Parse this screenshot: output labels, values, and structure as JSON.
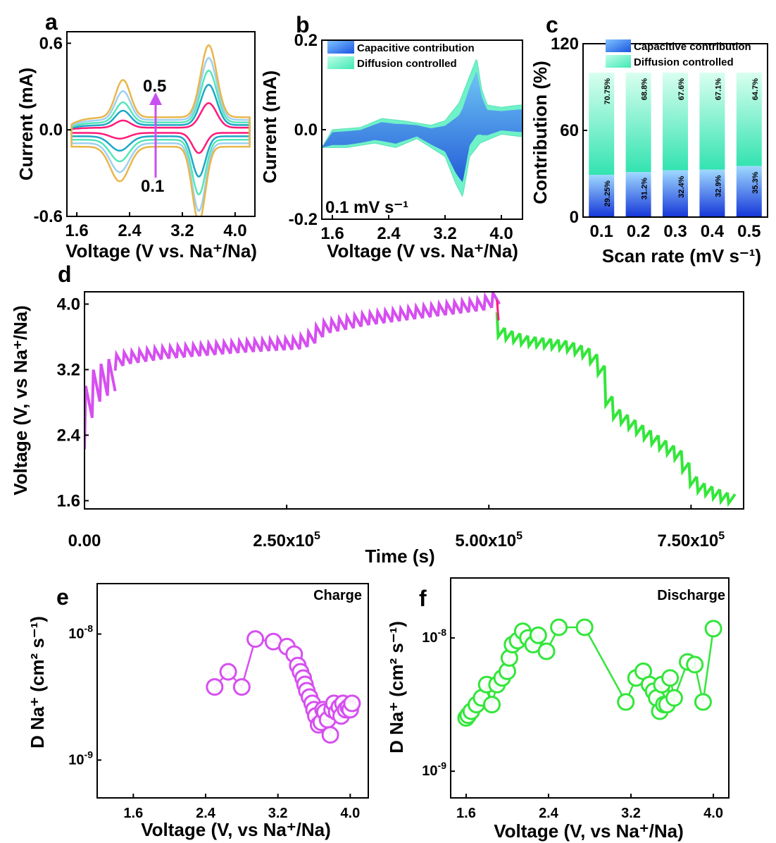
{
  "colors": {
    "cv_scan_colors": [
      "#ff1a7a",
      "#1ea7c7",
      "#55e6b8",
      "#9ed0f2",
      "#e8b64a"
    ],
    "capacitive": "#1e74e0",
    "diffusion": "#6ff2c8",
    "gitt_charge": "#d64ff0",
    "gitt_discharge": "#33e63a",
    "gitt_drop": "#ff1a7a",
    "arrow": "#c94ff2"
  },
  "panels": [
    {
      "letter": "a",
      "chart_data": {
        "type": "line",
        "xlabel": "Voltage (V vs. Na⁺/Na)",
        "ylabel": "Current (mA)",
        "xlim": [
          1.45,
          4.3
        ],
        "ylim": [
          -0.6,
          0.68
        ],
        "xticks": [
          1.6,
          2.4,
          3.2,
          4.0
        ],
        "yticks": [
          -0.6,
          0.0,
          0.6
        ],
        "annotations": [
          "0.5",
          "0.1"
        ],
        "scan_rates": [
          0.1,
          0.2,
          0.3,
          0.4,
          0.5
        ],
        "anodic_peaks": [
          {
            "v": 2.3,
            "i": [
              0.05,
              0.1,
              0.14,
              0.2,
              0.26
            ]
          },
          {
            "v": 3.6,
            "i": [
              0.17,
              0.28,
              0.36,
              0.43,
              0.5
            ]
          }
        ],
        "cathodic_peaks": [
          {
            "v": 2.25,
            "i": [
              -0.04,
              -0.1,
              -0.15,
              -0.2,
              -0.24
            ]
          },
          {
            "v": 3.45,
            "i": [
              -0.14,
              -0.28,
              -0.38,
              -0.47,
              -0.52
            ]
          }
        ]
      }
    },
    {
      "letter": "b",
      "chart_data": {
        "type": "area",
        "xlabel": "Voltage (V vs. Na⁺/Na)",
        "ylabel": "Current (mA)",
        "xlim": [
          1.45,
          4.3
        ],
        "ylim": [
          -0.2,
          0.2
        ],
        "xticks": [
          1.6,
          2.4,
          3.2,
          4.0
        ],
        "yticks": [
          -0.2,
          0.0,
          0.2
        ],
        "series": [
          {
            "name": "Capacitive contribution"
          },
          {
            "name": "Diffusion controlled"
          }
        ],
        "annotation": "0.1 mV s⁻¹",
        "upper_curve": {
          "x": [
            1.45,
            1.6,
            2.0,
            2.3,
            2.6,
            3.0,
            3.2,
            3.4,
            3.55,
            3.65,
            3.72,
            3.8,
            4.0,
            4.25
          ],
          "y": [
            -0.04,
            0.0,
            0.005,
            0.025,
            0.02,
            0.01,
            0.02,
            0.06,
            0.12,
            0.16,
            0.09,
            0.055,
            0.05,
            0.055
          ]
        },
        "lower_curve": {
          "x": [
            1.45,
            1.8,
            2.2,
            2.5,
            2.8,
            3.0,
            3.2,
            3.35,
            3.45,
            3.55,
            3.7,
            4.0,
            4.25
          ],
          "y": [
            -0.04,
            -0.04,
            -0.03,
            -0.04,
            -0.02,
            -0.04,
            -0.06,
            -0.12,
            -0.15,
            -0.06,
            -0.03,
            -0.01,
            -0.015
          ]
        }
      }
    },
    {
      "letter": "c",
      "chart_data": {
        "type": "bar",
        "xlabel": "Scan rate (mV s⁻¹)",
        "ylabel": "Contribution (%)",
        "ylim": [
          0,
          120
        ],
        "yticks": [
          0,
          60,
          120
        ],
        "categories": [
          "0.1",
          "0.2",
          "0.3",
          "0.4",
          "0.5"
        ],
        "series": [
          {
            "name": "Capacitive contribution",
            "values": [
              29.25,
              31.2,
              32.4,
              32.9,
              35.3
            ],
            "labels": [
              "29.25%",
              "31.2%",
              "32.4%",
              "32.9%",
              "35.3%"
            ]
          },
          {
            "name": "Diffusion controlled",
            "values": [
              70.75,
              68.8,
              67.6,
              67.1,
              64.7
            ],
            "labels": [
              "70.75%",
              "68.8%",
              "67.6%",
              "67.1%",
              "64.7%"
            ]
          }
        ]
      }
    },
    {
      "letter": "d",
      "chart_data": {
        "type": "line",
        "xlabel": "Time (s)",
        "ylabel": "Voltage (V, vs Na⁺/Na)",
        "xlim": [
          0,
          815000.0
        ],
        "ylim": [
          1.5,
          4.15
        ],
        "xticks": [
          0,
          250000,
          500000,
          750000
        ],
        "xtick_labels": [
          {
            "base": "0.00",
            "exp": ""
          },
          {
            "base": "2.50x10",
            "exp": "5"
          },
          {
            "base": "5.00x10",
            "exp": "5"
          },
          {
            "base": "7.50x10",
            "exp": "5"
          }
        ],
        "yticks": [
          1.6,
          2.4,
          3.2,
          4.0
        ],
        "charge_envelope": {
          "t": [
            0,
            8000,
            20000,
            50000,
            100000,
            200000,
            270000,
            285000,
            300000,
            350000,
            420000,
            500000,
            510000
          ],
          "v": [
            2.6,
            2.95,
            3.2,
            3.38,
            3.45,
            3.53,
            3.57,
            3.64,
            3.76,
            3.86,
            3.95,
            4.05,
            4.12
          ]
        },
        "discharge_envelope": {
          "t": [
            510000,
            520000,
            550000,
            600000,
            630000,
            645000,
            655000,
            700000,
            740000,
            760000,
            800000
          ],
          "v": [
            3.82,
            3.62,
            3.53,
            3.47,
            3.36,
            3.14,
            2.68,
            2.38,
            2.12,
            1.76,
            1.6
          ]
        }
      }
    },
    {
      "letter": "e",
      "chart_data": {
        "type": "scatter",
        "xlabel": "Voltage (V, vs Na⁺/Na)",
        "ylabel": "D Na⁺ (cm² s⁻¹)",
        "annotation": "Charge",
        "xlim": [
          1.2,
          4.2
        ],
        "ylim_log10": [
          -9.3,
          -7.6
        ],
        "xticks": [
          1.6,
          2.4,
          3.2,
          4.0
        ],
        "yticks_log10": [
          -9,
          -8
        ],
        "x": [
          2.5,
          2.65,
          2.8,
          2.95,
          3.15,
          3.3,
          3.38,
          3.42,
          3.45,
          3.48,
          3.5,
          3.52,
          3.55,
          3.58,
          3.6,
          3.62,
          3.65,
          3.68,
          3.7,
          3.72,
          3.75,
          3.78,
          3.8,
          3.82,
          3.85,
          3.88,
          3.9,
          3.92,
          3.95,
          3.98,
          4.0,
          4.02
        ],
        "y_log10": [
          -8.42,
          -8.3,
          -8.42,
          -8.04,
          -8.06,
          -8.1,
          -8.16,
          -8.25,
          -8.3,
          -8.35,
          -8.4,
          -8.45,
          -8.5,
          -8.55,
          -8.6,
          -8.65,
          -8.72,
          -8.7,
          -8.6,
          -8.62,
          -8.68,
          -8.8,
          -8.6,
          -8.55,
          -8.62,
          -8.58,
          -8.65,
          -8.55,
          -8.6,
          -8.58,
          -8.6,
          -8.55
        ]
      }
    },
    {
      "letter": "f",
      "chart_data": {
        "type": "scatter",
        "xlabel": "Voltage (V, vs Na⁺/Na)",
        "ylabel": "D Na⁺ (cm² s⁻¹)",
        "annotation": "Discharge",
        "xlim": [
          1.45,
          4.15
        ],
        "ylim_log10": [
          -9.2,
          -7.55
        ],
        "xticks": [
          1.6,
          2.4,
          3.2,
          4.0
        ],
        "yticks_log10": [
          -9,
          -8
        ],
        "x": [
          1.6,
          1.62,
          1.65,
          1.7,
          1.75,
          1.8,
          1.85,
          1.9,
          1.95,
          2.0,
          2.02,
          2.05,
          2.1,
          2.15,
          2.2,
          2.25,
          2.3,
          2.38,
          2.5,
          2.75,
          3.15,
          3.25,
          3.32,
          3.38,
          3.42,
          3.45,
          3.48,
          3.5,
          3.52,
          3.55,
          3.58,
          3.62,
          3.75,
          3.82,
          3.9,
          4.0
        ],
        "y_log10": [
          -8.6,
          -8.58,
          -8.55,
          -8.5,
          -8.45,
          -8.35,
          -8.5,
          -8.35,
          -8.3,
          -8.25,
          -8.15,
          -8.05,
          -8.02,
          -7.95,
          -8.0,
          -8.05,
          -7.98,
          -8.1,
          -7.92,
          -7.92,
          -8.48,
          -8.3,
          -8.25,
          -8.35,
          -8.4,
          -8.45,
          -8.55,
          -8.35,
          -8.5,
          -8.5,
          -8.3,
          -8.45,
          -8.18,
          -8.2,
          -8.48,
          -7.93
        ]
      }
    }
  ]
}
